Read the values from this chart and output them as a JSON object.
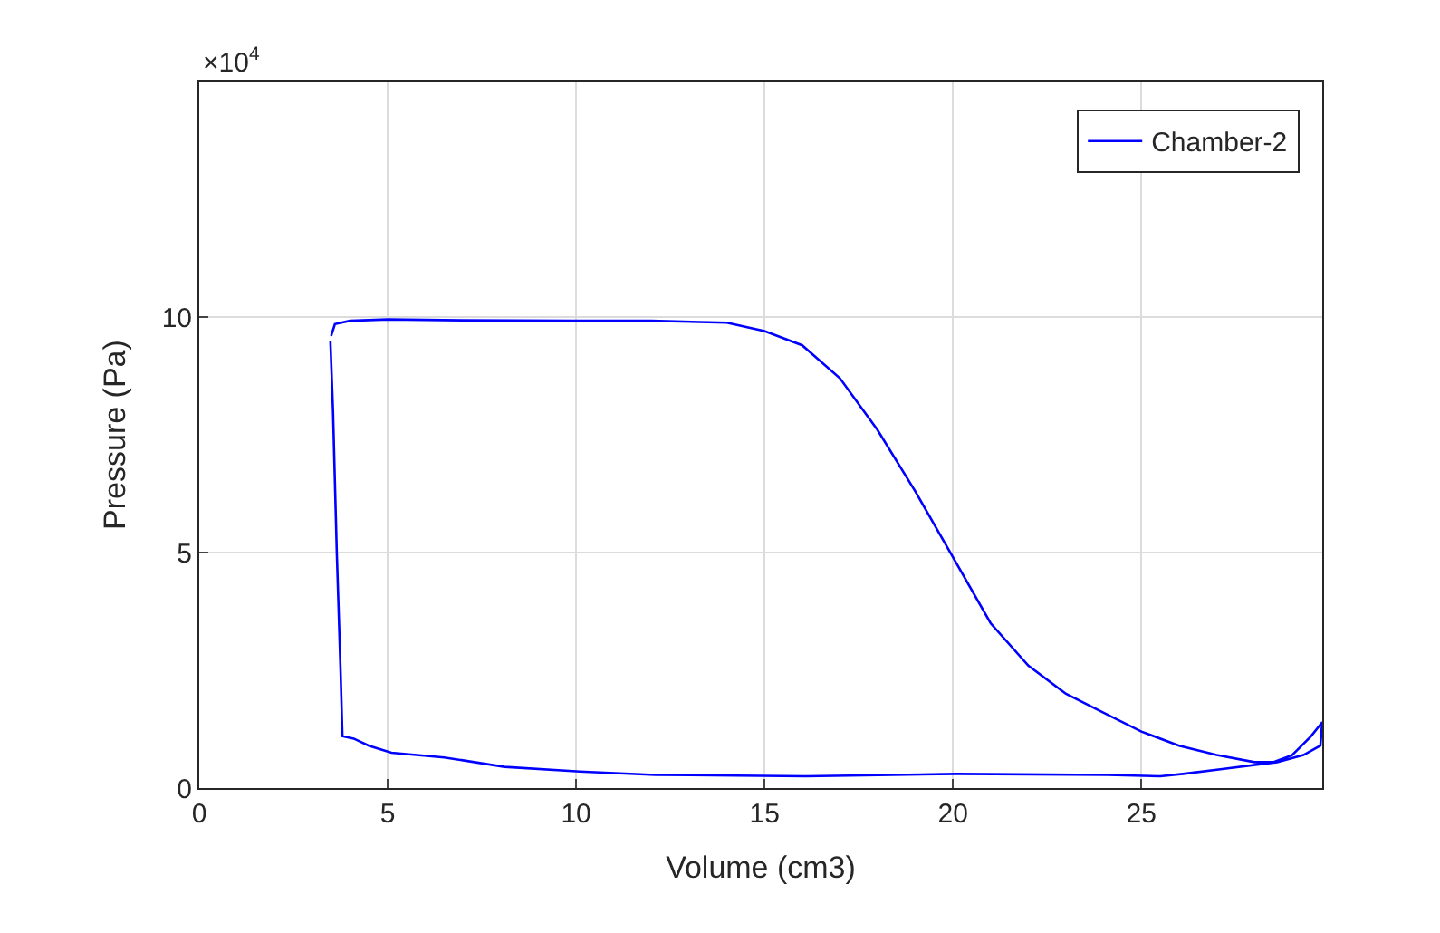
{
  "chart_data": {
    "type": "line",
    "xlabel": "Volume (cm3)",
    "ylabel": "Pressure (Pa)",
    "annotations": [
      "×10$^{4}$"
    ],
    "xlim": [
      0,
      29.8
    ],
    "xticks": [
      0,
      5,
      10,
      15,
      20,
      25
    ],
    "ylim": [
      0,
      15
    ],
    "yticks": [
      0,
      5,
      10
    ],
    "grid": true,
    "legend": "top right",
    "marker": "none",
    "line_style": "solid",
    "series": [
      {
        "name": "Chamber-2",
        "color": "#0000ff",
        "x": [
          3.5,
          3.6,
          4.0,
          5.0,
          7.0,
          10.0,
          12.0,
          14.0,
          15.0,
          16.0,
          17.0,
          18.0,
          19.0,
          20.0,
          21.0,
          22.0,
          23.0,
          24.0,
          25.0,
          26.0,
          27.0,
          28.0,
          28.5,
          29.0,
          29.5,
          29.8,
          29.75,
          29.3,
          28.6,
          27.1,
          26.1,
          25.5,
          24.1,
          20.1,
          16.1,
          12.1,
          10.1,
          8.1,
          6.5,
          5.1,
          4.5,
          4.1,
          3.8,
          3.75,
          3.65,
          3.55,
          3.48
        ],
        "values": [
          9.6,
          9.85,
          9.92,
          9.95,
          9.93,
          9.92,
          9.92,
          9.88,
          9.7,
          9.4,
          8.7,
          7.6,
          6.3,
          4.9,
          3.5,
          2.6,
          2.0,
          1.6,
          1.2,
          0.9,
          0.7,
          0.55,
          0.55,
          0.7,
          1.1,
          1.4,
          0.9,
          0.7,
          0.55,
          0.4,
          0.3,
          0.25,
          0.28,
          0.3,
          0.25,
          0.28,
          0.35,
          0.45,
          0.65,
          0.75,
          0.9,
          1.05,
          1.1,
          2.5,
          5.0,
          8.0,
          9.5
        ]
      }
    ]
  }
}
